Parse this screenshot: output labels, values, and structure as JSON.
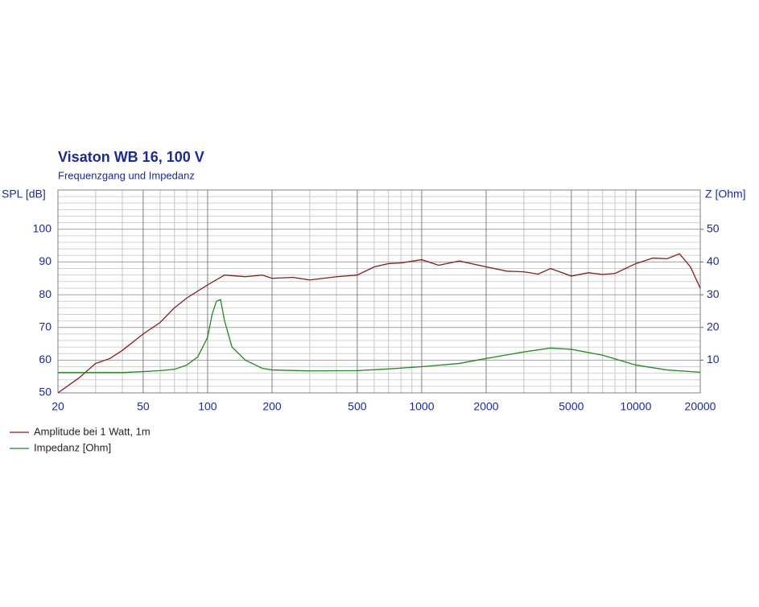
{
  "chart_data": {
    "type": "line",
    "title": "Visaton WB 16, 100 V",
    "subtitle": "Frequenzgang und Impedanz",
    "y_label": "SPL [dB]",
    "y2_label": "Z [Ohm]",
    "log_x": true,
    "grid": true,
    "xlim": [
      20,
      20000
    ],
    "xticks": [
      20,
      50,
      100,
      200,
      500,
      1000,
      2000,
      5000,
      10000,
      20000
    ],
    "xminorticks": [
      30,
      40,
      60,
      70,
      80,
      90,
      300,
      400,
      600,
      700,
      800,
      900,
      3000,
      4000,
      6000,
      7000,
      8000,
      9000
    ],
    "ylim": [
      50,
      112
    ],
    "yticks": [
      50,
      60,
      70,
      80,
      90,
      100
    ],
    "yminorticks": [
      52,
      54,
      56,
      58,
      62,
      64,
      66,
      68,
      72,
      74,
      76,
      78,
      82,
      84,
      86,
      88,
      92,
      94,
      96,
      98,
      102,
      104,
      106,
      108,
      110
    ],
    "y2lim": [
      0,
      62
    ],
    "y2ticks": [
      10,
      20,
      30,
      40,
      50
    ],
    "series": [
      {
        "name": "Amplitude bei 1 Watt, 1m",
        "color": "#8b1a1a",
        "x": [
          20,
          25,
          30,
          35,
          40,
          50,
          60,
          70,
          80,
          100,
          120,
          150,
          180,
          200,
          250,
          300,
          400,
          500,
          600,
          700,
          800,
          1000,
          1200,
          1500,
          2000,
          2500,
          3000,
          3500,
          4000,
          5000,
          6000,
          7000,
          8000,
          10000,
          12000,
          14000,
          16000,
          18000,
          20000
        ],
        "values": [
          50,
          54.5,
          59,
          60.5,
          63,
          68,
          71.5,
          76,
          79,
          83,
          86,
          85.5,
          86,
          85,
          85.3,
          84.5,
          85.5,
          86,
          88.5,
          89.5,
          89.7,
          90.7,
          89,
          90.3,
          88.5,
          87.2,
          87,
          86.3,
          88,
          85.7,
          86.7,
          86.2,
          86.5,
          89.5,
          91.2,
          91,
          92.5,
          88.5,
          82
        ]
      },
      {
        "name": "Impedanz [Ohm]",
        "color": "#1e8c1e",
        "axis": "y2",
        "x": [
          20,
          30,
          40,
          50,
          60,
          70,
          80,
          90,
          100,
          105,
          110,
          115,
          120,
          130,
          150,
          180,
          200,
          300,
          500,
          700,
          1000,
          1500,
          2000,
          3000,
          4000,
          5000,
          7000,
          10000,
          14000,
          20000
        ],
        "values": [
          6.2,
          6.2,
          6.2,
          6.5,
          6.8,
          7.2,
          8.5,
          11,
          17,
          24,
          28,
          28.5,
          22,
          14,
          10,
          7.5,
          7,
          6.7,
          6.8,
          7.3,
          8,
          9,
          10.5,
          12.5,
          13.7,
          13.3,
          11.5,
          8.5,
          7,
          6.3
        ]
      }
    ]
  }
}
